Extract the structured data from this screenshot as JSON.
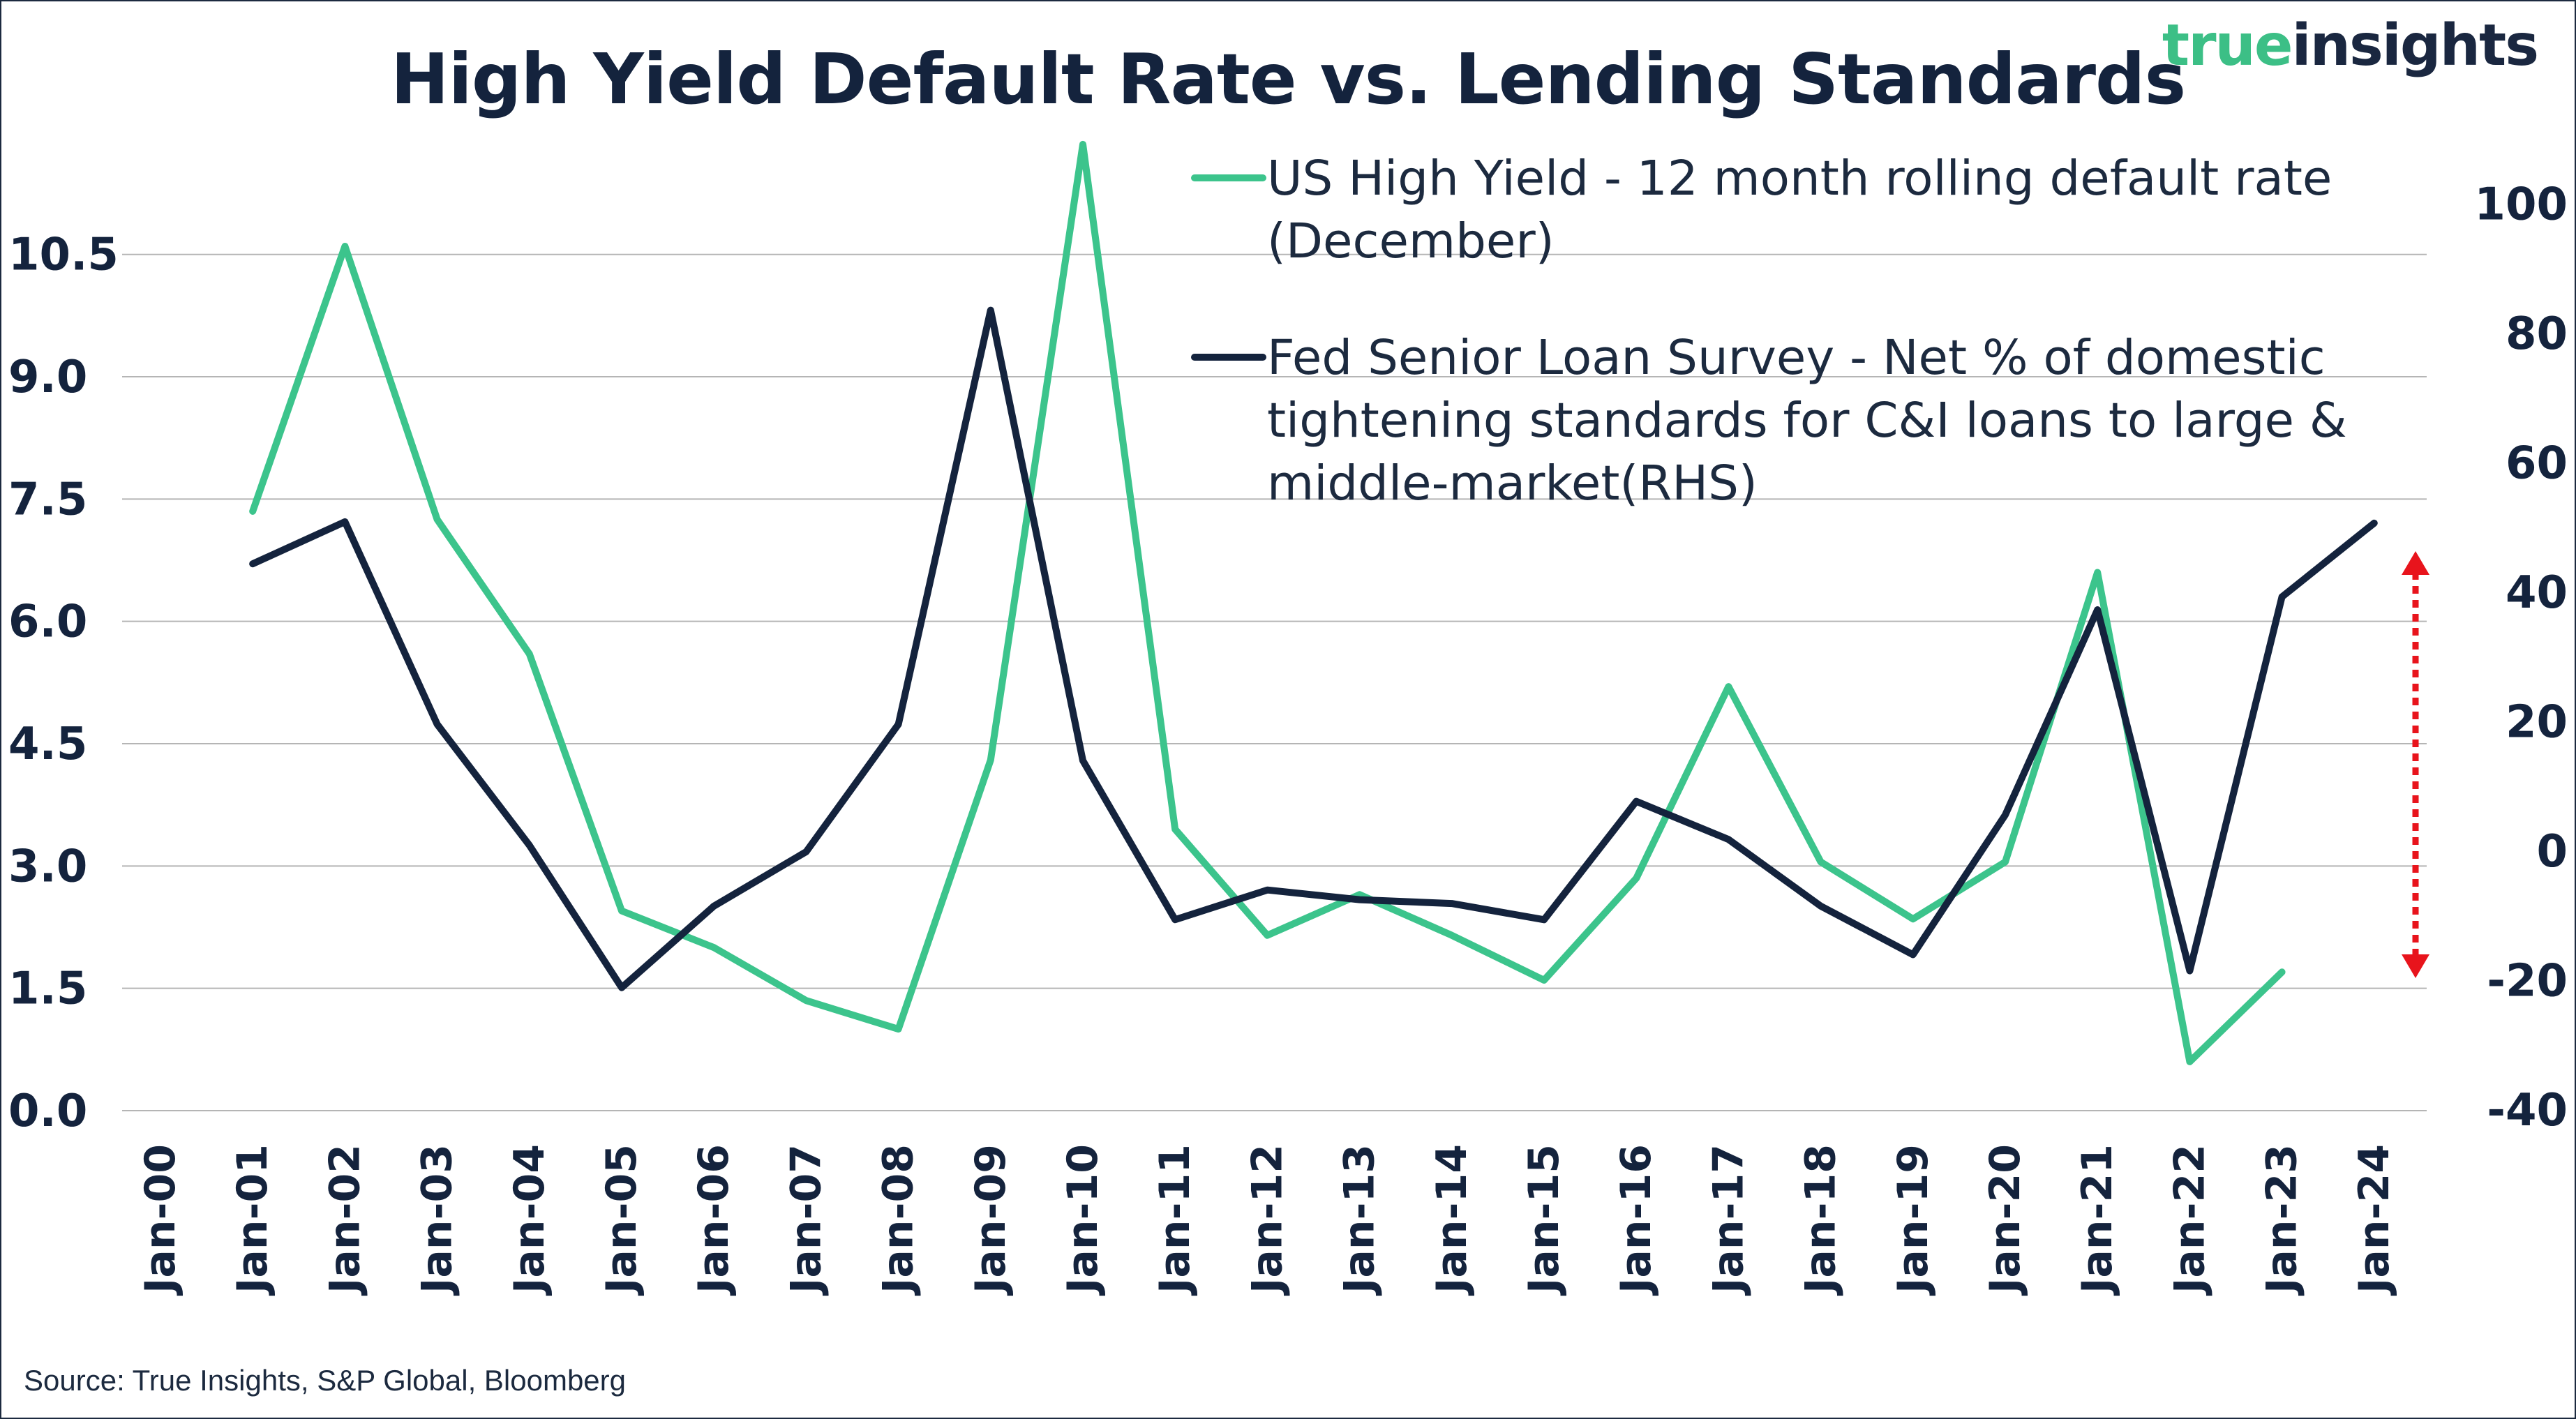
{
  "brand": {
    "part1": "true",
    "part2": "insights"
  },
  "source": "Source: True Insights, S&P Global, Bloomberg",
  "colors": {
    "green": "#3cc48c",
    "navy": "#14233d",
    "arrow": "#e8141c",
    "grid": "#b5b5b5"
  },
  "chart_data": {
    "type": "line",
    "title": "High Yield Default Rate vs. Lending Standards",
    "categories": [
      "Jan-00",
      "Jan-01",
      "Jan-02",
      "Jan-03",
      "Jan-04",
      "Jan-05",
      "Jan-06",
      "Jan-07",
      "Jan-08",
      "Jan-09",
      "Jan-10",
      "Jan-11",
      "Jan-12",
      "Jan-13",
      "Jan-14",
      "Jan-15",
      "Jan-16",
      "Jan-17",
      "Jan-18",
      "Jan-19",
      "Jan-20",
      "Jan-21",
      "Jan-22",
      "Jan-23",
      "Jan-24"
    ],
    "y_left": {
      "ylim": [
        0,
        12
      ],
      "ticks": [
        "0.0",
        "1.5",
        "3.0",
        "4.5",
        "6.0",
        "7.5",
        "9.0",
        "10.5"
      ],
      "tick_values": [
        0,
        1.5,
        3,
        4.5,
        6,
        7.5,
        9,
        10.5
      ]
    },
    "y_right": {
      "ylim": [
        -40,
        110
      ],
      "ticks": [
        "-40",
        "-20",
        "0",
        "20",
        "40",
        "60",
        "80",
        "100"
      ],
      "tick_values": [
        -40,
        -20,
        0,
        20,
        40,
        60,
        80,
        100
      ]
    },
    "grid": true,
    "legend_placement": "top-right",
    "series": [
      {
        "name": "US High Yield - 12 month rolling default rate (December)",
        "legend_lines": [
          "US High Yield - 12 month rolling default rate",
          "(December)"
        ],
        "axis": "left",
        "color": "#3cc48c",
        "values": [
          null,
          7.35,
          10.6,
          7.25,
          5.6,
          2.45,
          2.0,
          1.35,
          1.0,
          4.3,
          11.85,
          3.45,
          2.15,
          2.65,
          2.15,
          1.6,
          2.85,
          5.2,
          3.05,
          2.35,
          3.05,
          6.6,
          0.6,
          1.7,
          null
        ]
      },
      {
        "name": "Fed Senior Loan Survey - Net % of domestic tightening standards for C&I loans to large & middle-market(RHS)",
        "legend_lines": [
          "Fed Senior Loan Survey - Net % of domestic",
          "tightening standards for C&I loans to large &",
          "middle-market(RHS)"
        ],
        "axis": "right",
        "color": "#14233d",
        "values": [
          null,
          44.4,
          50.9,
          19.6,
          0.9,
          -21.1,
          -8.5,
          -0.1,
          19.6,
          83.6,
          14.0,
          -10.6,
          -6.0,
          -7.5,
          -8.1,
          -10.6,
          7.7,
          1.8,
          -8.5,
          -16.0,
          5.6,
          37.3,
          -18.5,
          39.3,
          50.7
        ]
      }
    ],
    "annotation": "red dotted double-headed arrow on right side"
  }
}
